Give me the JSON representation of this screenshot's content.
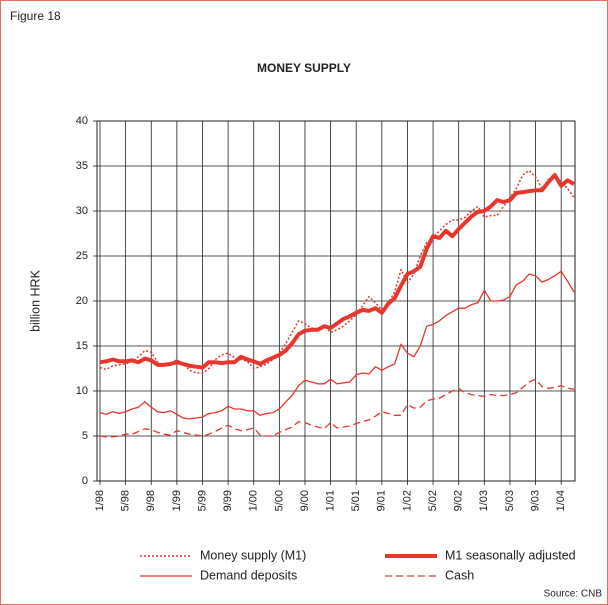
{
  "figure_label": "Figure 18",
  "source": "Source: CNB",
  "chart_data": {
    "type": "line",
    "title": "MONEY SUPPLY",
    "y_label": "billion HRK",
    "categories": [
      "1/98",
      null,
      null,
      null,
      "5/98",
      null,
      null,
      null,
      "9/98",
      null,
      null,
      null,
      "1/99",
      null,
      null,
      null,
      "5/99",
      null,
      null,
      null,
      "9/99",
      null,
      null,
      null,
      "1/00",
      null,
      null,
      null,
      "5/00",
      null,
      null,
      null,
      "9/00",
      null,
      null,
      null,
      "1/01",
      null,
      null,
      null,
      "5/01",
      null,
      null,
      null,
      "9/01",
      null,
      null,
      null,
      "1/02",
      null,
      null,
      null,
      "5/02",
      null,
      null,
      null,
      "9/02",
      null,
      null,
      null,
      "1/03",
      null,
      null,
      null,
      "5/03",
      null,
      null,
      null,
      "9/03",
      null,
      null,
      null,
      "1/04",
      null,
      null
    ],
    "ylim": [
      0,
      40
    ],
    "yticks": [
      0,
      5,
      10,
      15,
      20,
      25,
      30,
      35,
      40
    ],
    "grid": true,
    "series": [
      {
        "name": "Money supply (M1)",
        "color": "#e8362c",
        "line_style": "dotted",
        "line_width": 1.5,
        "values": [
          12.6,
          12.4,
          12.8,
          12.9,
          13.0,
          13.3,
          13.8,
          14.5,
          14.3,
          13.2,
          12.8,
          13.0,
          13.5,
          13.0,
          12.3,
          12.0,
          12.0,
          12.5,
          13.5,
          14.0,
          14.2,
          13.7,
          13.5,
          13.3,
          12.5,
          12.7,
          13.0,
          13.5,
          14.2,
          15.3,
          16.5,
          17.8,
          17.5,
          17.0,
          16.9,
          17.3,
          16.5,
          16.8,
          17.2,
          17.8,
          18.5,
          19.5,
          20.5,
          19.8,
          19.0,
          19.8,
          21.0,
          23.5,
          22.0,
          23.0,
          25.0,
          26.5,
          27.0,
          27.8,
          28.5,
          29.0,
          29.0,
          29.3,
          30.0,
          30.5,
          29.3,
          29.5,
          29.5,
          30.5,
          31.5,
          32.5,
          34.0,
          34.5,
          33.8,
          32.5,
          33.5,
          34.0,
          33.3,
          32.5,
          31.5
        ]
      },
      {
        "name": "M1 seasonally adjusted",
        "color": "#e8362c",
        "line_style": "solid",
        "line_width": 4,
        "values": [
          13.2,
          13.3,
          13.5,
          13.3,
          13.3,
          13.4,
          13.2,
          13.6,
          13.4,
          12.9,
          12.9,
          13.0,
          13.2,
          13.0,
          12.8,
          12.7,
          12.6,
          13.2,
          13.2,
          13.1,
          13.2,
          13.2,
          13.8,
          13.5,
          13.3,
          13.0,
          13.4,
          13.7,
          14.0,
          14.5,
          15.3,
          16.3,
          16.7,
          16.8,
          16.8,
          17.2,
          17.0,
          17.5,
          18.0,
          18.3,
          18.7,
          19.0,
          18.9,
          19.2,
          18.7,
          19.7,
          20.3,
          21.7,
          23.0,
          23.3,
          23.8,
          25.8,
          27.2,
          27.0,
          27.8,
          27.2,
          28.0,
          28.7,
          29.4,
          29.9,
          30.0,
          30.5,
          31.2,
          31.0,
          31.2,
          32.0,
          32.1,
          32.2,
          32.3,
          32.3,
          33.2,
          34.0,
          32.8,
          33.4,
          33.0
        ]
      },
      {
        "name": "Demand deposits",
        "color": "#e8362c",
        "line_style": "solid",
        "line_width": 1.3,
        "values": [
          7.6,
          7.4,
          7.7,
          7.5,
          7.7,
          8.0,
          8.2,
          8.8,
          8.2,
          7.7,
          7.6,
          7.8,
          7.4,
          7.0,
          6.9,
          7.0,
          7.1,
          7.5,
          7.6,
          7.8,
          8.3,
          8.0,
          8.0,
          7.8,
          7.8,
          7.3,
          7.5,
          7.6,
          8.0,
          8.8,
          9.5,
          10.6,
          11.2,
          11.0,
          10.8,
          10.8,
          11.3,
          10.8,
          10.9,
          11.0,
          11.8,
          12.0,
          11.9,
          12.7,
          12.3,
          12.7,
          13.0,
          15.2,
          14.2,
          13.8,
          15.0,
          17.2,
          17.4,
          17.8,
          18.4,
          18.8,
          19.2,
          19.2,
          19.6,
          19.8,
          21.2,
          20.0,
          20.0,
          20.1,
          20.5,
          21.8,
          22.2,
          23.0,
          22.8,
          22.1,
          22.4,
          22.8,
          23.3,
          22.2,
          21.0
        ]
      },
      {
        "name": "Cash",
        "color": "#e8362c",
        "line_style": "dashed",
        "line_width": 1.3,
        "values": [
          5.0,
          4.9,
          4.9,
          5.0,
          5.2,
          5.2,
          5.5,
          5.8,
          5.7,
          5.4,
          5.2,
          5.1,
          5.6,
          5.4,
          5.2,
          5.1,
          5.0,
          5.2,
          5.5,
          5.9,
          6.2,
          5.8,
          5.6,
          5.7,
          5.9,
          5.1,
          5.0,
          5.0,
          5.4,
          5.7,
          6.0,
          6.6,
          6.5,
          6.2,
          6.0,
          5.8,
          6.5,
          5.9,
          6.0,
          6.1,
          6.4,
          6.6,
          6.8,
          7.2,
          7.7,
          7.5,
          7.3,
          7.3,
          8.5,
          8.1,
          8.2,
          8.9,
          9.1,
          9.2,
          9.6,
          10.0,
          10.3,
          9.8,
          9.6,
          9.5,
          9.4,
          9.6,
          9.5,
          9.5,
          9.6,
          9.8,
          10.4,
          11.0,
          11.3,
          10.5,
          10.3,
          10.4,
          10.6,
          10.3,
          10.2
        ]
      }
    ]
  }
}
